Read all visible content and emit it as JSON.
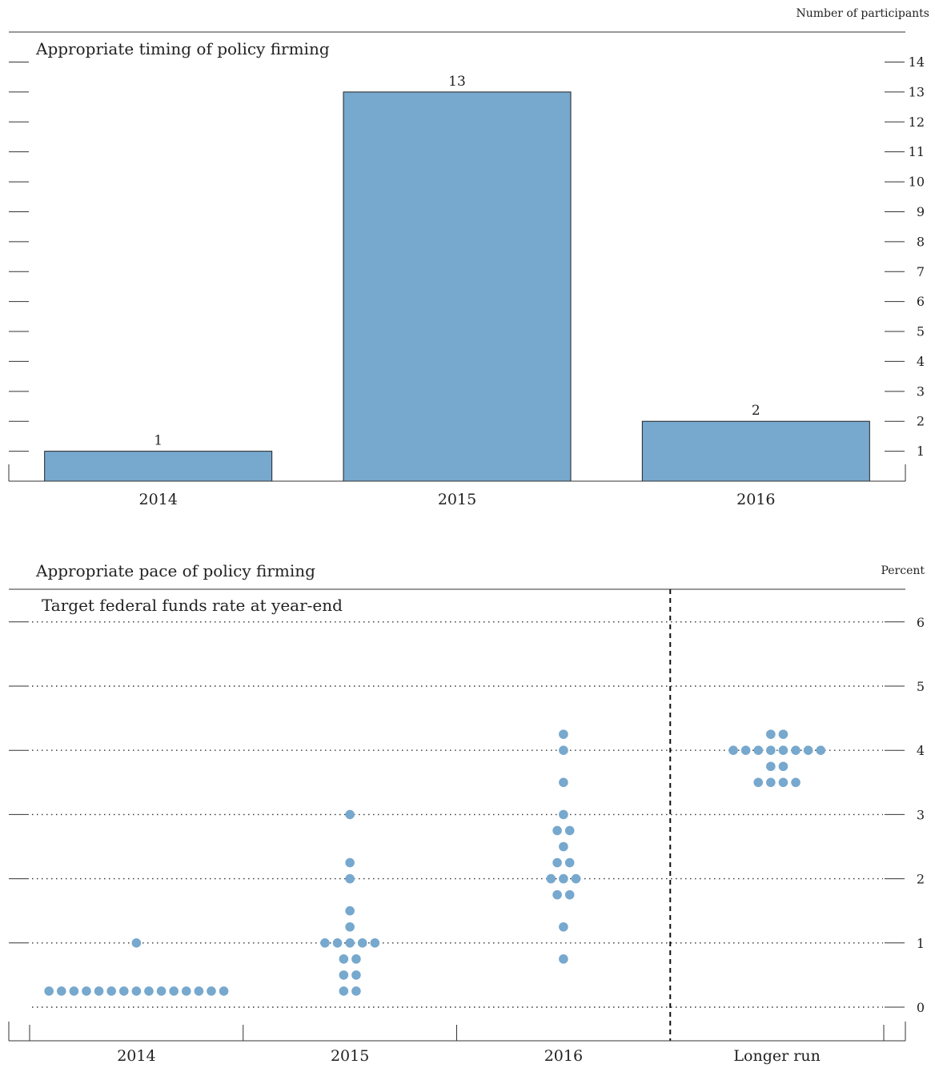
{
  "chart_data": [
    {
      "type": "bar",
      "title": "Appropriate timing of policy firming",
      "unit_label": "Number of participants",
      "categories": [
        "2014",
        "2015",
        "2016"
      ],
      "values": [
        1,
        13,
        2
      ],
      "ylim": [
        0,
        14
      ],
      "yticks": [
        "1",
        "2",
        "3",
        "4",
        "5",
        "6",
        "7",
        "8",
        "9",
        "10",
        "11",
        "12",
        "13",
        "14"
      ],
      "bar_color": "#77a8ce",
      "data_labels": true,
      "grid": false
    },
    {
      "type": "scatter",
      "title": "Appropriate pace of policy firming",
      "subtitle": "Target federal funds rate at year-end",
      "unit_label": "Percent",
      "categories": [
        "2014",
        "2015",
        "2016",
        "Longer run"
      ],
      "ylim": [
        0,
        6.5
      ],
      "yticks": [
        "0",
        "1",
        "2",
        "3",
        "4",
        "5",
        "6"
      ],
      "gridlines": [
        0,
        1,
        2,
        3,
        4,
        5,
        6
      ],
      "dot_color": "#77a8ce",
      "separator_before": "Longer run",
      "groups": [
        {
          "category": "2014",
          "points": [
            {
              "y": 0.25,
              "count": 15
            },
            {
              "y": 1.0,
              "count": 1
            }
          ]
        },
        {
          "category": "2015",
          "points": [
            {
              "y": 0.25,
              "count": 2
            },
            {
              "y": 0.5,
              "count": 2
            },
            {
              "y": 0.75,
              "count": 2
            },
            {
              "y": 1.0,
              "count": 5
            },
            {
              "y": 1.25,
              "count": 1
            },
            {
              "y": 1.5,
              "count": 1
            },
            {
              "y": 2.0,
              "count": 1
            },
            {
              "y": 2.25,
              "count": 1
            },
            {
              "y": 3.0,
              "count": 1
            }
          ]
        },
        {
          "category": "2016",
          "points": [
            {
              "y": 0.75,
              "count": 1
            },
            {
              "y": 1.25,
              "count": 1
            },
            {
              "y": 1.75,
              "count": 2
            },
            {
              "y": 2.0,
              "count": 3
            },
            {
              "y": 2.25,
              "count": 2
            },
            {
              "y": 2.5,
              "count": 1
            },
            {
              "y": 2.75,
              "count": 2
            },
            {
              "y": 3.0,
              "count": 1
            },
            {
              "y": 3.5,
              "count": 1
            },
            {
              "y": 4.0,
              "count": 1
            },
            {
              "y": 4.25,
              "count": 1
            }
          ]
        },
        {
          "category": "Longer run",
          "points": [
            {
              "y": 3.5,
              "count": 4
            },
            {
              "y": 3.75,
              "count": 2
            },
            {
              "y": 4.0,
              "count": 8
            },
            {
              "y": 4.25,
              "count": 2
            }
          ]
        }
      ]
    }
  ]
}
